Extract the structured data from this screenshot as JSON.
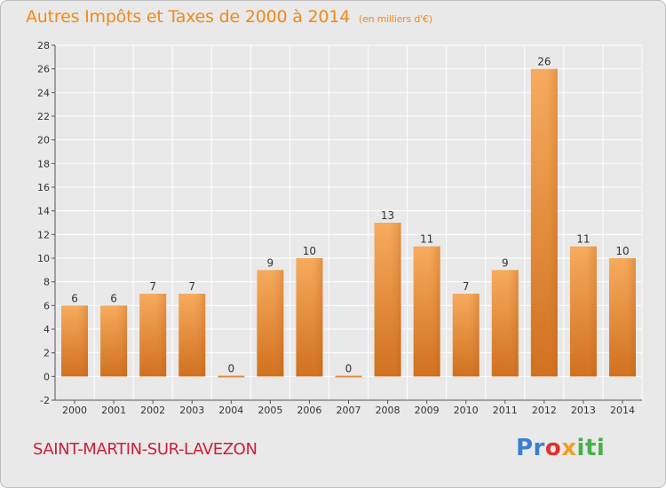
{
  "title": "Autres Impôts et Taxes de 2000 à 2014",
  "subtitle": "(en milliers d'€)",
  "commune": "SAINT-MARTIN-SUR-LAVEZON",
  "logo": {
    "letters": [
      "Pr",
      "o",
      "x",
      "iti"
    ]
  },
  "colors": {
    "title": "#f08a1a",
    "bar_light": "#f7aa5c",
    "bar_dark": "#d07020",
    "commune": "#cc1f3a",
    "background": "#e9e9e9",
    "grid": "#ffffff"
  },
  "chart_data": {
    "type": "bar",
    "title": "Autres Impôts et Taxes de 2000 à 2014",
    "subtitle": "(en milliers d'€)",
    "categories": [
      "2000",
      "2001",
      "2002",
      "2003",
      "2004",
      "2005",
      "2006",
      "2007",
      "2008",
      "2009",
      "2010",
      "2011",
      "2012",
      "2013",
      "2014"
    ],
    "values": [
      6,
      6,
      7,
      7,
      0,
      9,
      10,
      0,
      13,
      11,
      7,
      9,
      26,
      11,
      10
    ],
    "value_labels": [
      "6",
      "6",
      "7",
      "7",
      "0",
      "9",
      "10",
      "0",
      "13",
      "11",
      "7",
      "9",
      "26",
      "11",
      "10"
    ],
    "ylim": [
      -2,
      28
    ],
    "yticks": [
      -2,
      0,
      2,
      4,
      6,
      8,
      10,
      12,
      14,
      16,
      18,
      20,
      22,
      24,
      26,
      28
    ],
    "ytick_labels": [
      "-2",
      "0",
      "2",
      "4",
      "6",
      "8",
      "10",
      "12",
      "14",
      "16",
      "18",
      "20",
      "22",
      "24",
      "26",
      "28"
    ],
    "grid": true,
    "xlabel": "",
    "ylabel": ""
  }
}
